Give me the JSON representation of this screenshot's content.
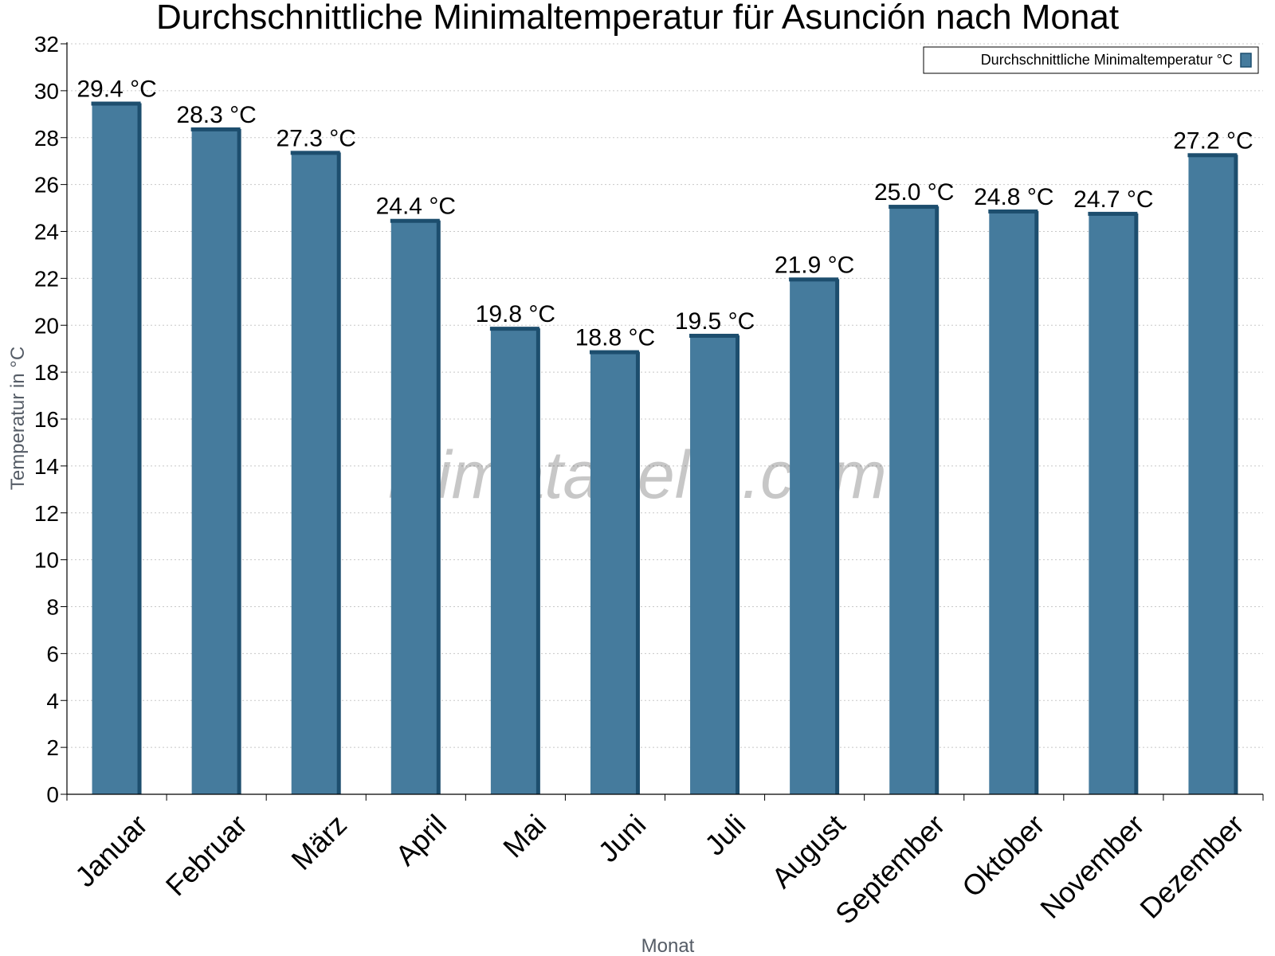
{
  "chart_data": {
    "type": "bar",
    "title": "Durchschnittliche Minimaltemperatur für Asunción nach Monat",
    "xlabel": "Monat",
    "ylabel": "Temperatur in °C",
    "categories": [
      "Januar",
      "Februar",
      "März",
      "April",
      "Mai",
      "Juni",
      "Juli",
      "August",
      "September",
      "Oktober",
      "November",
      "Dezember"
    ],
    "series": [
      {
        "name": "Durchschnittliche Minimaltemperatur °C",
        "values": [
          29.4,
          28.3,
          27.3,
          24.4,
          19.8,
          18.8,
          19.5,
          21.9,
          25.0,
          24.8,
          24.7,
          27.2
        ],
        "labels": [
          "29.4 °C",
          "28.3 °C",
          "27.3 °C",
          "24.4 °C",
          "19.8 °C",
          "18.8 °C",
          "19.5 °C",
          "21.9 °C",
          "25.0 °C",
          "24.8 °C",
          "24.7 °C",
          "27.2 °C"
        ]
      }
    ],
    "ylim": [
      0,
      32
    ],
    "yticks": [
      0,
      2,
      4,
      6,
      8,
      10,
      12,
      14,
      16,
      18,
      20,
      22,
      24,
      26,
      28,
      30,
      32
    ],
    "grid": true,
    "legend_position": "top-right",
    "bar_color": "#457b9d",
    "bar_edge_color": "#1d4e6e",
    "watermark": "klimatabelle.com"
  }
}
